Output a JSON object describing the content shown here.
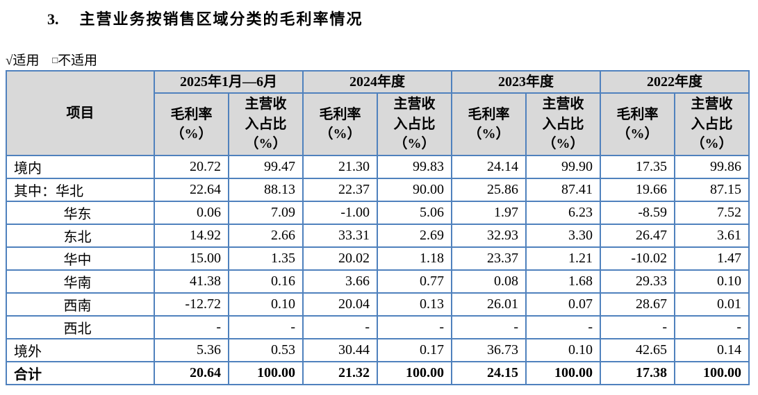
{
  "title": {
    "number": "3.",
    "text": "主营业务按销售区域分类的毛利率情况"
  },
  "applicability": {
    "applicable_mark": "√",
    "applicable_label": "适用",
    "not_applicable_mark": "□",
    "not_applicable_label": "不适用"
  },
  "table": {
    "item_header": "项目",
    "periods": [
      "2025年1月—6月",
      "2024年度",
      "2023年度",
      "2022年度"
    ],
    "margin_header": "毛利率\n（%）",
    "share_header": "主营收\n入占比\n（%）",
    "rows": [
      {
        "label": "境内",
        "values": [
          "20.72",
          "99.47",
          "21.30",
          "99.83",
          "24.14",
          "99.90",
          "17.35",
          "99.86"
        ]
      },
      {
        "label": "其中：华北",
        "values": [
          "22.64",
          "88.13",
          "22.37",
          "90.00",
          "25.86",
          "87.41",
          "19.66",
          "87.15"
        ]
      },
      {
        "label": "华东",
        "values": [
          "0.06",
          "7.09",
          "-1.00",
          "5.06",
          "1.97",
          "6.23",
          "-8.59",
          "7.52"
        ]
      },
      {
        "label": "东北",
        "values": [
          "14.92",
          "2.66",
          "33.31",
          "2.69",
          "32.93",
          "3.30",
          "26.47",
          "3.61"
        ]
      },
      {
        "label": "华中",
        "values": [
          "15.00",
          "1.35",
          "20.02",
          "1.18",
          "23.37",
          "1.21",
          "-10.02",
          "1.47"
        ]
      },
      {
        "label": "华南",
        "values": [
          "41.38",
          "0.16",
          "3.66",
          "0.77",
          "0.08",
          "1.68",
          "29.33",
          "0.10"
        ]
      },
      {
        "label": "西南",
        "values": [
          "-12.72",
          "0.10",
          "20.04",
          "0.13",
          "26.01",
          "0.07",
          "28.67",
          "0.01"
        ]
      },
      {
        "label": "西北",
        "values": [
          "-",
          "-",
          "-",
          "-",
          "-",
          "-",
          "-",
          "-"
        ]
      },
      {
        "label": "境外",
        "values": [
          "5.36",
          "0.53",
          "30.44",
          "0.17",
          "36.73",
          "0.10",
          "42.65",
          "0.14"
        ]
      },
      {
        "label": "合计",
        "values": [
          "20.64",
          "100.00",
          "21.32",
          "100.00",
          "24.15",
          "100.00",
          "17.38",
          "100.00"
        ]
      }
    ]
  },
  "colors": {
    "table_border": "#4F81BD",
    "header_bg": "#D9D9D9",
    "text": "#000000"
  }
}
